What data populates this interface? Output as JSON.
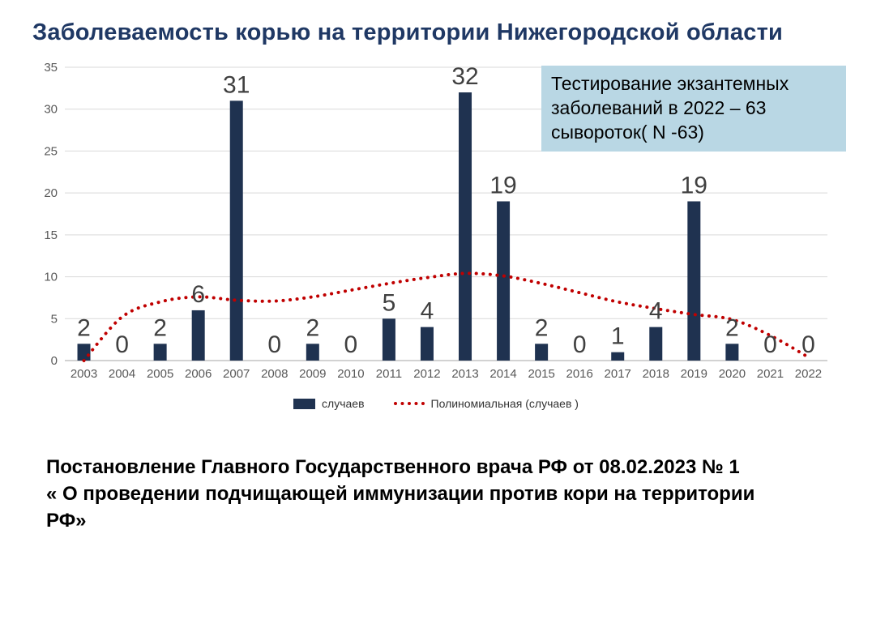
{
  "title": "Заболеваемость корью на территории Нижегородской области",
  "info_box": {
    "lines": [
      "Тестирование экзантемных",
      "заболеваний в 2022 – 63",
      "сывороток( N -63)"
    ]
  },
  "footer": {
    "lines": [
      "Постановление Главного Государственного врача РФ от 08.02.2023 № 1",
      "« О проведении подчищающей иммунизации против кори на территории",
      "РФ»"
    ]
  },
  "chart_data": {
    "type": "bar",
    "title": "Заболеваемость корью на территории Нижегородской области",
    "categories": [
      "2003",
      "2004",
      "2005",
      "2006",
      "2007",
      "2008",
      "2009",
      "2010",
      "2011",
      "2012",
      "2013",
      "2014",
      "2015",
      "2016",
      "2017",
      "2018",
      "2019",
      "2020",
      "2021",
      "2022"
    ],
    "series": [
      {
        "name": "случаев",
        "kind": "bar",
        "color": "#1f3250",
        "values": [
          2,
          0,
          2,
          6,
          31,
          0,
          2,
          0,
          5,
          4,
          32,
          19,
          2,
          0,
          1,
          4,
          19,
          2,
          0,
          0
        ]
      },
      {
        "name": "Полиномиальная (случаев )",
        "kind": "dotted-line",
        "color": "#c00000",
        "values": [
          0,
          5.2,
          7,
          7.6,
          7.2,
          7.1,
          7.6,
          8.4,
          9.2,
          9.9,
          10.4,
          10.1,
          9.2,
          8.1,
          7,
          6.2,
          5.5,
          4.9,
          3,
          0.4
        ]
      }
    ],
    "ylim": [
      0,
      35
    ],
    "yticks": [
      0,
      5,
      10,
      15,
      20,
      25,
      30,
      35
    ],
    "grid": true,
    "data_labels": true,
    "legend_position": "bottom",
    "xlabel": "",
    "ylabel": ""
  },
  "colors": {
    "title": "#1f3864",
    "bar": "#1f3250",
    "trend": "#c00000",
    "gridline": "#d9d9d9",
    "axis_text": "#595959",
    "data_label": "#404040",
    "info_box_bg": "#b9d7e4"
  }
}
